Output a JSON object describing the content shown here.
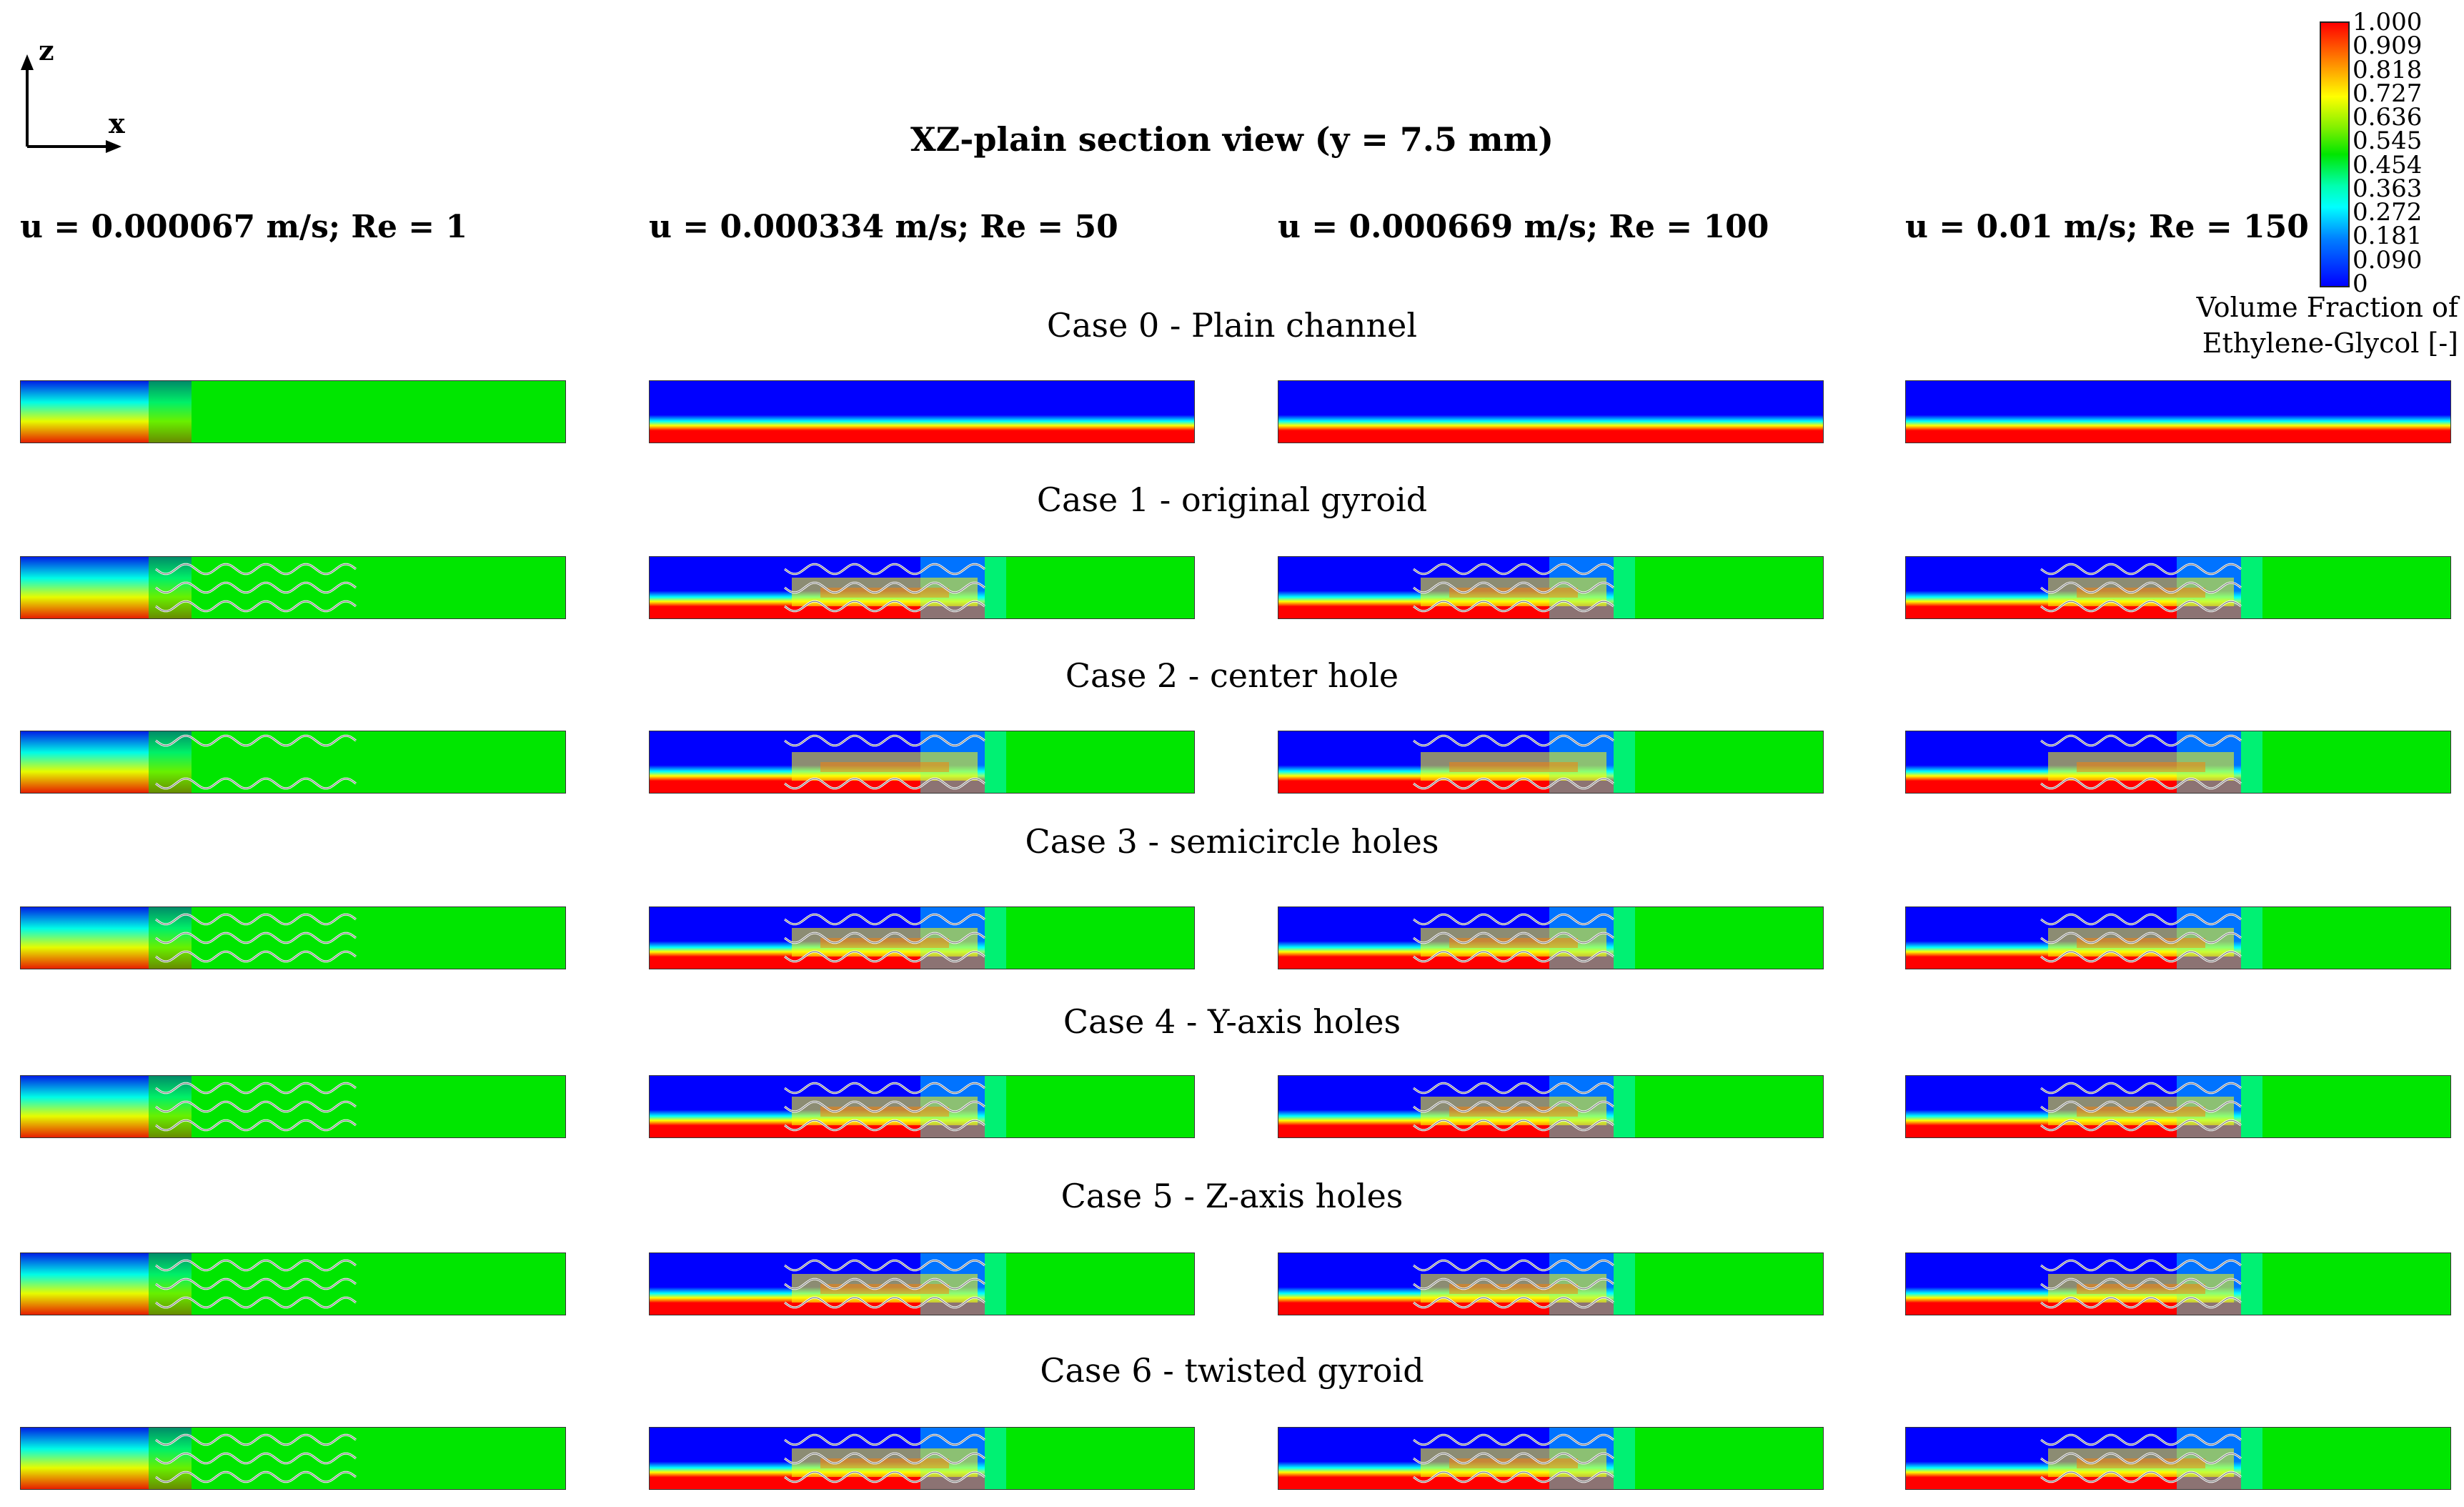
{
  "title": "XZ-plain section view (y = 7.5 mm)",
  "axes": {
    "z_label": "z",
    "x_label": "x"
  },
  "columns": [
    "u = 0.000067 m/s; Re = 1",
    "u = 0.000334 m/s; Re = 50",
    "u = 0.000669 m/s; Re = 100",
    "u = 0.01 m/s; Re = 150"
  ],
  "cases": [
    "Case 0 - Plain channel",
    "Case 1 - original gyroid",
    "Case 2 - center hole",
    "Case 3 - semicircle holes",
    "Case 4 - Y-axis holes",
    "Case 5 - Z-axis holes",
    "Case 6 - twisted gyroid"
  ],
  "colorbar": {
    "ticks": [
      "1.000",
      "0.909",
      "0.818",
      "0.727",
      "0.636",
      "0.545",
      "0.454",
      "0.363",
      "0.272",
      "0.181",
      "0.090",
      "0"
    ],
    "title_line1": "Volume Fraction of",
    "title_line2": "Ethylene-Glycol [-]",
    "colors": {
      "red": "#ff0000",
      "orange": "#ff8000",
      "yellow": "#ffff00",
      "green": "#00e600",
      "cyan": "#00ffff",
      "blue": "#0000ff"
    }
  }
}
